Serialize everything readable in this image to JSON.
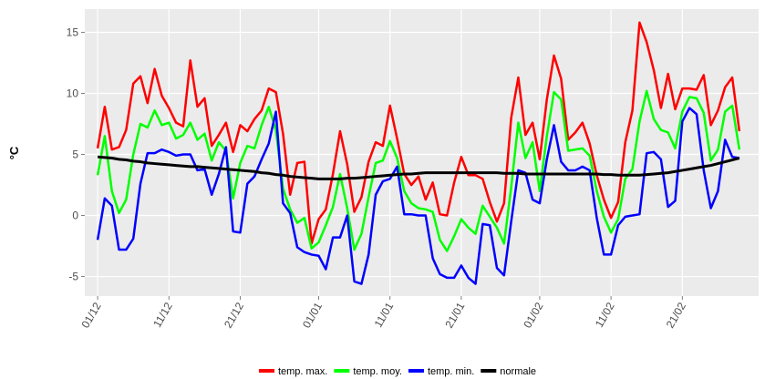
{
  "chart_data": {
    "type": "line",
    "ylabel": "°C",
    "x": [
      0,
      1,
      2,
      3,
      4,
      5,
      6,
      7,
      8,
      9,
      10,
      11,
      12,
      13,
      14,
      15,
      16,
      17,
      18,
      19,
      20,
      21,
      22,
      23,
      24,
      25,
      26,
      27,
      28,
      29,
      30,
      31,
      32,
      33,
      34,
      35,
      36,
      37,
      38,
      39,
      40,
      41,
      42,
      43,
      44,
      45,
      46,
      47,
      48,
      49,
      50,
      51,
      52,
      53,
      54,
      55,
      56,
      57,
      58,
      59,
      60,
      61,
      62,
      63,
      64,
      65,
      66,
      67,
      68,
      69,
      70,
      71,
      72,
      73,
      74,
      75,
      76,
      77,
      78,
      79,
      80,
      81,
      82,
      83,
      84,
      85,
      86,
      87,
      88,
      89,
      90
    ],
    "xlim": [
      -1.8,
      92.7
    ],
    "xticks": [
      {
        "value": 0,
        "label": "01/12"
      },
      {
        "value": 10,
        "label": "11/12"
      },
      {
        "value": 20,
        "label": "21/12"
      },
      {
        "value": 31,
        "label": "01/01"
      },
      {
        "value": 41,
        "label": "11/01"
      },
      {
        "value": 51,
        "label": "21/01"
      },
      {
        "value": 62,
        "label": "01/02"
      },
      {
        "value": 72,
        "label": "11/02"
      },
      {
        "value": 82,
        "label": "21/02"
      }
    ],
    "ylim": [
      -6.6,
      16.9
    ],
    "yticks": [
      -5,
      0,
      5,
      10,
      15
    ],
    "grid": true,
    "legend": "bottom",
    "series": [
      {
        "name": "temp. max.",
        "color": "#ff0000",
        "values": [
          5.5,
          8.9,
          5.4,
          5.6,
          7.0,
          10.8,
          11.4,
          9.2,
          12.0,
          9.8,
          8.8,
          7.6,
          7.3,
          12.7,
          8.9,
          9.6,
          5.7,
          6.6,
          7.6,
          5.2,
          7.4,
          6.9,
          7.9,
          8.6,
          10.4,
          10.1,
          6.7,
          1.7,
          4.3,
          4.4,
          -2.3,
          -0.3,
          0.5,
          3.4,
          6.9,
          4.2,
          0.3,
          1.5,
          4.4,
          6.0,
          5.7,
          9.0,
          6.3,
          3.4,
          2.5,
          3.2,
          1.3,
          2.7,
          0.1,
          0.0,
          2.7,
          4.8,
          3.3,
          3.3,
          3.0,
          1.1,
          -0.5,
          1.0,
          8.0,
          11.3,
          6.6,
          7.6,
          4.6,
          9.5,
          13.1,
          11.2,
          6.2,
          6.8,
          7.6,
          5.9,
          3.3,
          1.3,
          -0.2,
          1.1,
          6.0,
          8.6,
          15.8,
          14.2,
          11.9,
          8.8,
          11.6,
          8.7,
          10.4,
          10.4,
          10.3,
          11.5,
          7.4,
          8.6,
          10.5,
          11.3,
          6.9
        ]
      },
      {
        "name": "temp. moy.",
        "color": "#00ff00",
        "values": [
          3.3,
          6.5,
          2.0,
          0.2,
          1.3,
          5.0,
          7.5,
          7.2,
          8.6,
          7.4,
          7.6,
          6.3,
          6.6,
          7.6,
          6.2,
          6.7,
          4.5,
          6.0,
          5.3,
          1.4,
          4.3,
          5.7,
          5.5,
          7.4,
          8.9,
          7.0,
          2.2,
          0.5,
          -0.6,
          -0.2,
          -2.7,
          -2.2,
          -0.8,
          0.7,
          3.4,
          0.6,
          -2.8,
          -1.5,
          1.5,
          4.3,
          4.5,
          6.1,
          4.7,
          2.0,
          1.0,
          0.6,
          0.5,
          0.3,
          -2.0,
          -2.9,
          -1.7,
          -0.3,
          -1.0,
          -1.5,
          0.8,
          -0.1,
          -1.0,
          -2.3,
          2.3,
          7.6,
          4.7,
          6.0,
          2.0,
          6.5,
          10.1,
          9.5,
          5.3,
          5.4,
          5.5,
          4.9,
          2.0,
          -0.1,
          -1.4,
          -0.3,
          3.0,
          3.8,
          7.7,
          10.2,
          7.9,
          7.0,
          6.8,
          5.5,
          8.5,
          9.7,
          9.6,
          8.4,
          4.5,
          5.4,
          8.5,
          9.0,
          5.4
        ]
      },
      {
        "name": "temp. min.",
        "color": "#0000ff",
        "values": [
          -2.0,
          1.4,
          0.8,
          -2.8,
          -2.8,
          -1.9,
          2.6,
          5.1,
          5.1,
          5.4,
          5.2,
          4.9,
          5.0,
          5.0,
          3.7,
          3.8,
          1.7,
          3.4,
          5.6,
          -1.3,
          -1.4,
          2.6,
          3.2,
          4.6,
          5.9,
          8.5,
          1.0,
          0.2,
          -2.6,
          -3.0,
          -3.2,
          -3.3,
          -4.4,
          -1.8,
          -1.8,
          0.0,
          -5.4,
          -5.6,
          -3.2,
          1.7,
          2.8,
          3.0,
          4.0,
          0.1,
          0.1,
          0.0,
          0.0,
          -3.5,
          -4.8,
          -5.1,
          -5.1,
          -4.1,
          -5.1,
          -5.6,
          -0.7,
          -0.8,
          -4.3,
          -4.9,
          -0.5,
          3.7,
          3.5,
          1.3,
          1.0,
          4.6,
          7.4,
          4.4,
          3.7,
          3.7,
          4.0,
          3.7,
          -0.2,
          -3.2,
          -3.2,
          -0.8,
          -0.1,
          0.0,
          0.1,
          5.1,
          5.2,
          4.6,
          0.7,
          1.2,
          7.7,
          8.8,
          8.3,
          3.7,
          0.6,
          2.0,
          6.2,
          4.8,
          4.7
        ]
      },
      {
        "name": "normale",
        "color": "#000000",
        "values": [
          4.8,
          4.75,
          4.7,
          4.6,
          4.55,
          4.45,
          4.4,
          4.3,
          4.25,
          4.2,
          4.15,
          4.1,
          4.05,
          4.0,
          4.0,
          3.95,
          3.9,
          3.85,
          3.8,
          3.75,
          3.7,
          3.65,
          3.6,
          3.5,
          3.45,
          3.35,
          3.3,
          3.2,
          3.15,
          3.1,
          3.05,
          3.0,
          3.0,
          3.0,
          3.0,
          3.05,
          3.05,
          3.1,
          3.15,
          3.2,
          3.25,
          3.3,
          3.35,
          3.4,
          3.4,
          3.45,
          3.5,
          3.5,
          3.5,
          3.5,
          3.5,
          3.5,
          3.5,
          3.5,
          3.5,
          3.5,
          3.5,
          3.45,
          3.45,
          3.45,
          3.4,
          3.4,
          3.4,
          3.4,
          3.4,
          3.4,
          3.4,
          3.4,
          3.4,
          3.4,
          3.4,
          3.35,
          3.35,
          3.3,
          3.3,
          3.3,
          3.3,
          3.35,
          3.4,
          3.45,
          3.5,
          3.6,
          3.7,
          3.8,
          3.9,
          4.0,
          4.1,
          4.25,
          4.4,
          4.55,
          4.7
        ]
      }
    ]
  }
}
